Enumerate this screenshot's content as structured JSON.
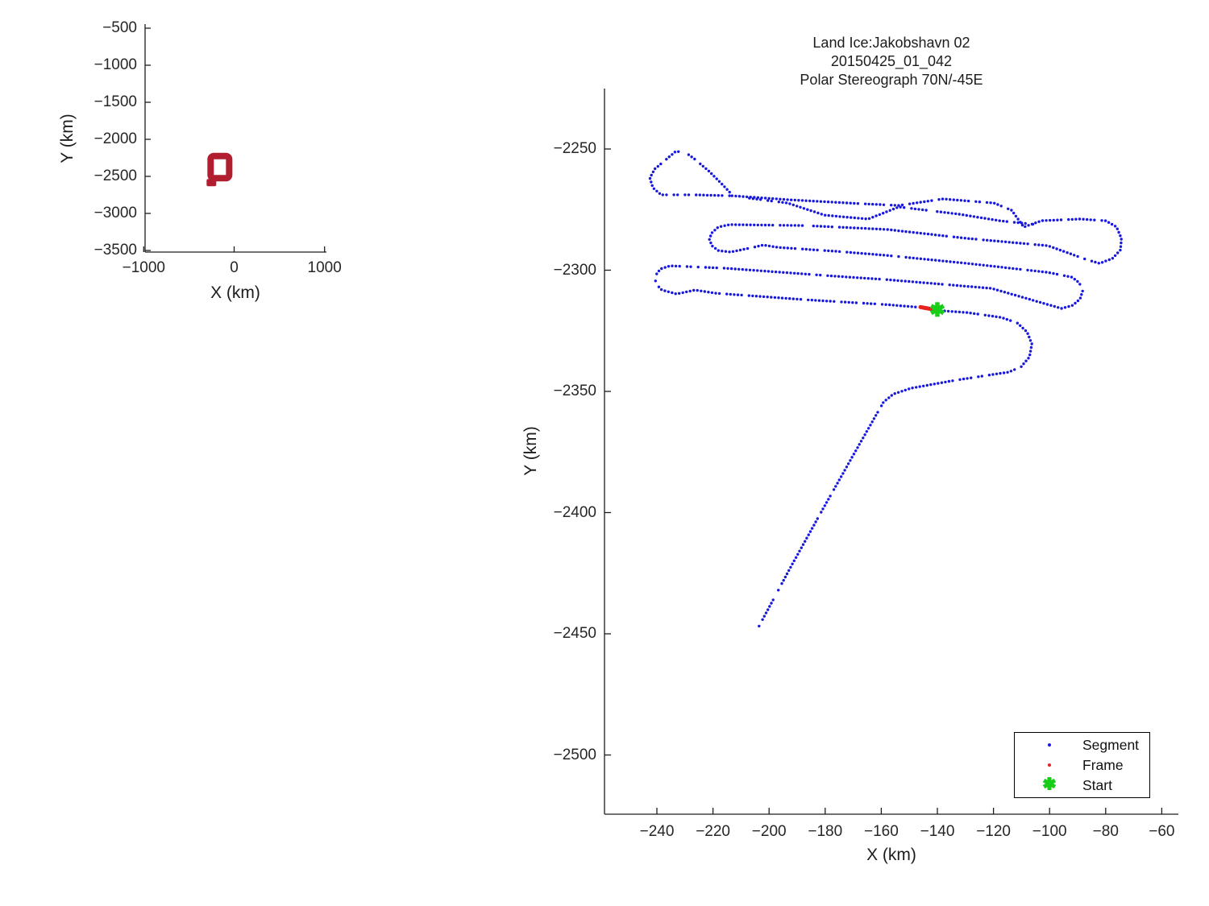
{
  "page": {
    "background": "#ffffff"
  },
  "chart_data": [
    {
      "id": "location_inset",
      "type": "scatter",
      "title": "",
      "xlabel": "X (km)",
      "ylabel": "Y (km)",
      "xlim": [
        -1000,
        1000
      ],
      "ylim": [
        -3500,
        -500
      ],
      "xticks": [
        -1000,
        0,
        1000
      ],
      "yticks": [
        -500,
        -1000,
        -1500,
        -2000,
        -2500,
        -3000,
        -3500
      ],
      "grid": false,
      "marker_color": "#B01E30",
      "coverage_box": {
        "x": [
          -260,
          -55
        ],
        "y": [
          -2525,
          -2225
        ]
      }
    },
    {
      "id": "flight_track",
      "type": "scatter",
      "title_lines": [
        "Land Ice:Jakobshavn 02",
        "20150425_01_042",
        "Polar Stereograph 70N/-45E"
      ],
      "xlabel": "X (km)",
      "ylabel": "Y (km)",
      "xlim": [
        -259,
        -55
      ],
      "ylim": [
        -2525,
        -2225
      ],
      "xticks": [
        -240,
        -220,
        -200,
        -180,
        -160,
        -140,
        -120,
        -100,
        -80,
        -60
      ],
      "yticks": [
        -2250,
        -2300,
        -2350,
        -2400,
        -2450,
        -2500
      ],
      "grid": false,
      "legend_position": "lower right",
      "legend": [
        {
          "label": "Segment",
          "marker": "dot",
          "color": "#1818dd"
        },
        {
          "label": "Frame",
          "marker": "dot",
          "color": "#e82020"
        },
        {
          "label": "Start",
          "marker": "asterisk",
          "color": "#17cd17"
        }
      ],
      "series": {
        "segment": {
          "name": "Segment",
          "color": "#1818dd",
          "polylines_km": [
            [
              [
                -214.1,
                -2269.3
              ],
              [
                -227.0,
                -2268.9
              ],
              [
                -238.5,
                -2268.9
              ],
              [
                -241.4,
                -2266.0
              ],
              [
                -242.5,
                -2262.0
              ],
              [
                -240.8,
                -2258.3
              ],
              [
                -233.3,
                -2251.0
              ],
              [
                -229.9,
                -2251.3
              ],
              [
                -226.4,
                -2254.3
              ],
              [
                -221.3,
                -2259.3
              ],
              [
                -216.1,
                -2265.3
              ],
              [
                -213.2,
                -2268.9
              ]
            ],
            [
              [
                -213.2,
                -2269.3
              ],
              [
                -193.4,
                -2270.9
              ],
              [
                -166.7,
                -2272.6
              ],
              [
                -153.7,
                -2273.3
              ],
              [
                -138.0,
                -2270.6
              ],
              [
                -119.8,
                -2272.3
              ],
              [
                -113.5,
                -2275.3
              ],
              [
                -109.2,
                -2282.2
              ],
              [
                -102.9,
                -2279.6
              ],
              [
                -89.1,
                -2278.9
              ],
              [
                -79.9,
                -2279.6
              ],
              [
                -76.1,
                -2282.2
              ],
              [
                -74.4,
                -2286.9
              ],
              [
                -74.7,
                -2291.6
              ],
              [
                -77.6,
                -2295.2
              ],
              [
                -82.2,
                -2297.2
              ],
              [
                -87.1,
                -2295.5
              ],
              [
                -100.6,
                -2289.9
              ],
              [
                -129.3,
                -2286.9
              ],
              [
                -158.0,
                -2283.2
              ],
              [
                -186.8,
                -2281.6
              ],
              [
                -214.1,
                -2281.2
              ],
              [
                -218.1,
                -2282.2
              ],
              [
                -220.4,
                -2284.6
              ],
              [
                -221.3,
                -2287.2
              ],
              [
                -220.4,
                -2289.9
              ],
              [
                -218.1,
                -2291.9
              ],
              [
                -213.8,
                -2292.5
              ],
              [
                -206.9,
                -2290.9
              ],
              [
                -202.0,
                -2289.6
              ],
              [
                -196.8,
                -2290.6
              ],
              [
                -176.1,
                -2292.2
              ],
              [
                -158.0,
                -2293.9
              ],
              [
                -129.3,
                -2297.2
              ],
              [
                -100.6,
                -2300.9
              ],
              [
                -92.0,
                -2302.9
              ],
              [
                -89.4,
                -2305.2
              ],
              [
                -88.2,
                -2308.5
              ],
              [
                -89.1,
                -2311.8
              ],
              [
                -91.7,
                -2314.5
              ],
              [
                -95.7,
                -2315.8
              ],
              [
                -120.7,
                -2307.5
              ],
              [
                -158.0,
                -2303.9
              ],
              [
                -176.1,
                -2302.5
              ],
              [
                -215.5,
                -2299.2
              ],
              [
                -235.3,
                -2298.2
              ],
              [
                -238.8,
                -2299.5
              ],
              [
                -240.5,
                -2302.2
              ],
              [
                -240.5,
                -2305.5
              ],
              [
                -238.2,
                -2308.2
              ],
              [
                -233.0,
                -2309.8
              ],
              [
                -226.4,
                -2308.2
              ],
              [
                -219.0,
                -2309.5
              ],
              [
                -186.8,
                -2312.2
              ],
              [
                -158.0,
                -2314.2
              ],
              [
                -147.7,
                -2315.2
              ]
            ],
            [
              [
                -207.0,
                -2270.3
              ],
              [
                -193.4,
                -2272.3
              ],
              [
                -180.2,
                -2277.3
              ],
              [
                -164.7,
                -2278.9
              ],
              [
                -153.7,
                -2273.9
              ],
              [
                -132.2,
                -2276.9
              ],
              [
                -117.8,
                -2279.6
              ],
              [
                -104.9,
                -2281.2
              ]
            ],
            [
              [
                -137.4,
                -2316.8
              ],
              [
                -129.3,
                -2317.5
              ],
              [
                -117.2,
                -2319.5
              ],
              [
                -111.5,
                -2321.8
              ],
              [
                -108.0,
                -2325.5
              ],
              [
                -106.3,
                -2330.5
              ],
              [
                -107.2,
                -2335.8
              ],
              [
                -110.1,
                -2339.8
              ],
              [
                -114.7,
                -2342.1
              ],
              [
                -119.0,
                -2342.8
              ],
              [
                -135.1,
                -2345.7
              ],
              [
                -149.4,
                -2348.7
              ],
              [
                -155.7,
                -2351.1
              ],
              [
                -159.2,
                -2354.4
              ],
              [
                -169.5,
                -2375.3
              ],
              [
                -181.0,
                -2398.9
              ],
              [
                -192.5,
                -2422.9
              ],
              [
                -203.7,
                -2447.1
              ]
            ]
          ]
        },
        "frame": {
          "name": "Frame",
          "color": "#e82020",
          "points_km": [
            [
              -146.0,
              -2315.2
            ],
            [
              -141.5,
              -2316.2
            ]
          ]
        },
        "start": {
          "name": "Start",
          "color": "#17cd17",
          "point_km": [
            -140.0,
            -2316.2
          ]
        }
      }
    }
  ]
}
